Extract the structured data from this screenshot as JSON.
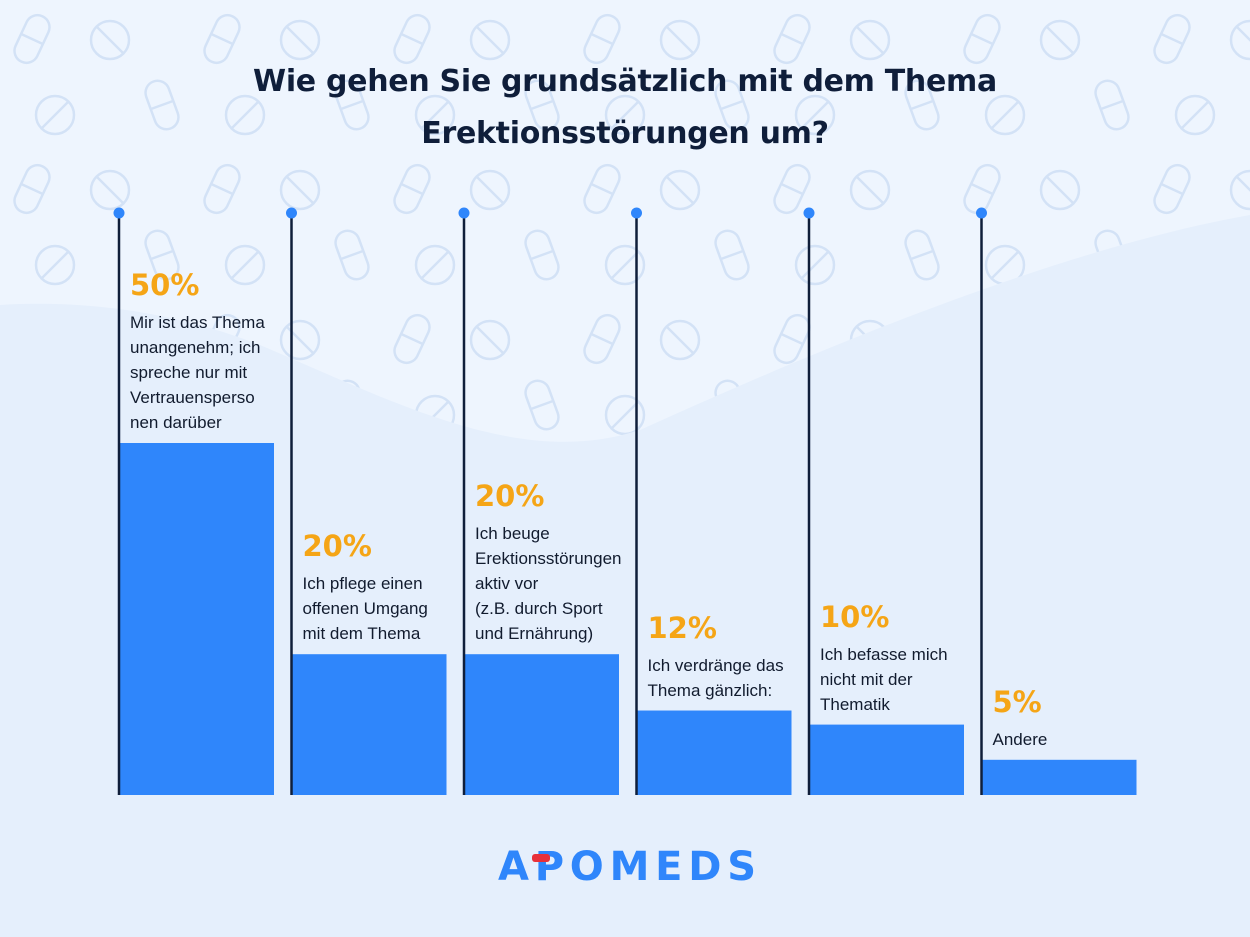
{
  "title_line1": "Wie gehen Sie grundsätzlich mit dem Thema",
  "title_line2": "Erektionsstörungen um?",
  "brand": {
    "logo_text": "APOMEDS",
    "primary_color": "#2f86fb",
    "accent_color": "#e8303a"
  },
  "colors": {
    "bar": "#2f86fb",
    "percent": "#f5a516",
    "axis_line": "#0f1e3a",
    "dot": "#2f86fb"
  },
  "chart_data": {
    "type": "bar",
    "title": "Wie gehen Sie grundsätzlich mit dem Thema Erektionsstörungen um?",
    "ylim": [
      0,
      60
    ],
    "grid": false,
    "legend": "none",
    "categories": [
      "Mir ist das Thema unangenehm; ich spreche nur mit Vertrauenspersonen darüber",
      "Ich pflege einen offenen Umgang mit dem Thema",
      "Ich beuge Erektionsstörungen aktiv vor (z.B. durch Sport und Ernährung)",
      "Ich verdränge das Thema gänzlich:",
      "Ich befasse mich nicht mit der Thematik",
      "Andere"
    ],
    "values": [
      50,
      20,
      20,
      12,
      10,
      5
    ],
    "labels": [
      "50%",
      "20%",
      "20%",
      "12%",
      "10%",
      "5%"
    ],
    "label_lines": [
      "Mir ist das Thema\nunangenehm; ich\nspreche nur mit\nVertrauensperso\nnen darüber",
      "Ich pflege einen\noffenen Umgang\nmit dem Thema",
      "Ich beuge\nErektionsstörungen\naktiv vor\n(z.B. durch Sport\nund Ernährung)",
      "Ich verdränge das\nThema gänzlich:",
      "Ich befasse mich\nnicht mit der\nThematik",
      "Andere"
    ]
  }
}
